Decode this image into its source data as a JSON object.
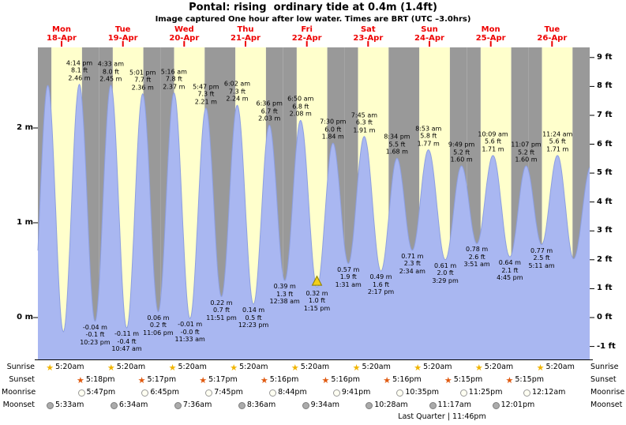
{
  "title": "Pontal: rising  ordinary tide at 0.4m (1.4ft)",
  "subtitle": "Image captured One hour after low water. Times are BRT (UTC –3.0hrs)",
  "days": [
    {
      "name": "Mon",
      "date": "18-Apr"
    },
    {
      "name": "Tue",
      "date": "19-Apr"
    },
    {
      "name": "Wed",
      "date": "20-Apr"
    },
    {
      "name": "Thu",
      "date": "21-Apr"
    },
    {
      "name": "Fri",
      "date": "22-Apr"
    },
    {
      "name": "Sat",
      "date": "23-Apr"
    },
    {
      "name": "Sun",
      "date": "24-Apr"
    },
    {
      "name": "Mon",
      "date": "25-Apr"
    },
    {
      "name": "Tue",
      "date": "26-Apr"
    }
  ],
  "axis": {
    "left": [
      {
        "text": "2 m",
        "m": 2
      },
      {
        "text": "1 m",
        "m": 1
      },
      {
        "text": "0 m",
        "m": 0
      }
    ],
    "right": [
      {
        "text": "9 ft",
        "ft": 9
      },
      {
        "text": "8 ft",
        "ft": 8
      },
      {
        "text": "7 ft",
        "ft": 7
      },
      {
        "text": "6 ft",
        "ft": 6
      },
      {
        "text": "5 ft",
        "ft": 5
      },
      {
        "text": "4 ft",
        "ft": 4
      },
      {
        "text": "3 ft",
        "ft": 3
      },
      {
        "text": "2 ft",
        "ft": 2
      },
      {
        "text": "1 ft",
        "ft": 1
      },
      {
        "text": "0 ft",
        "ft": 0
      },
      {
        "text": "-1 ft",
        "ft": -1
      }
    ]
  },
  "chart_data": {
    "type": "area",
    "title": "Pontal tide heights 18-Apr to 26-Apr",
    "unit_left": "m",
    "unit_right": "ft",
    "ylim_m": [
      -0.44,
      2.85
    ],
    "tide_events": [
      {
        "t": -2.3,
        "h": -0.05,
        "kind": "low"
      },
      {
        "t": 3.9,
        "h": 2.45,
        "kind": "high"
      },
      {
        "t": 9.97,
        "h": -0.15,
        "kind": "low"
      },
      {
        "t": 16.23,
        "h": 2.46,
        "kind": "high",
        "lines": [
          "4:14 pm",
          "8.1 ft",
          "2.46 m"
        ]
      },
      {
        "t": 22.38,
        "h": -0.04,
        "kind": "low",
        "lines": [
          "-0.04 m",
          "-0.1 ft",
          "10:23 pm"
        ]
      },
      {
        "t": 28.55,
        "h": 2.45,
        "kind": "high",
        "lines": [
          "4:33 am",
          "8.0 ft",
          "2.45 m"
        ]
      },
      {
        "t": 34.78,
        "h": -0.11,
        "kind": "low",
        "lines": [
          "-0.11 m",
          "-0.4 ft",
          "10:47 am"
        ]
      },
      {
        "t": 41.02,
        "h": 2.36,
        "kind": "high",
        "lines": [
          "5:01 pm",
          "7.7 ft",
          "2.36 m"
        ]
      },
      {
        "t": 47.1,
        "h": 0.06,
        "kind": "low",
        "lines": [
          "0.06 m",
          "0.2 ft",
          "11:06 pm"
        ]
      },
      {
        "t": 53.27,
        "h": 2.37,
        "kind": "high",
        "lines": [
          "5:16 am",
          "7.8 ft",
          "2.37 m"
        ]
      },
      {
        "t": 59.55,
        "h": -0.01,
        "kind": "low",
        "lines": [
          "-0.01 m",
          "-0.0 ft",
          "11:33 am"
        ]
      },
      {
        "t": 65.78,
        "h": 2.21,
        "kind": "high",
        "lines": [
          "5:47 pm",
          "7.3 ft",
          "2.21 m"
        ]
      },
      {
        "t": 71.85,
        "h": 0.22,
        "kind": "low",
        "lines": [
          "0.22 m",
          "0.7 ft",
          "11:51 pm"
        ]
      },
      {
        "t": 78.03,
        "h": 2.24,
        "kind": "high",
        "lines": [
          "6:02 am",
          "7.3 ft",
          "2.24 m"
        ]
      },
      {
        "t": 84.38,
        "h": 0.14,
        "kind": "low",
        "lines": [
          "0.14 m",
          "0.5 ft",
          "12:23 pm"
        ]
      },
      {
        "t": 90.6,
        "h": 2.03,
        "kind": "high",
        "lines": [
          "6:36 pm",
          "6.7 ft",
          "2.03 m"
        ]
      },
      {
        "t": 96.63,
        "h": 0.39,
        "kind": "low",
        "lines": [
          "0.39 m",
          "1.3 ft",
          "12:38 am"
        ]
      },
      {
        "t": 102.83,
        "h": 2.08,
        "kind": "high",
        "lines": [
          "6:50 am",
          "6.8 ft",
          "2.08 m"
        ]
      },
      {
        "t": 109.25,
        "h": 0.32,
        "kind": "low",
        "lines": [
          "0.32 m",
          "1.0 ft",
          "1:15 pm"
        ]
      },
      {
        "t": 115.5,
        "h": 1.84,
        "kind": "high",
        "lines": [
          "7:30 pm",
          "6.0 ft",
          "1.84 m"
        ]
      },
      {
        "t": 121.52,
        "h": 0.57,
        "kind": "low",
        "lines": [
          "0.57 m",
          "1.9 ft",
          "1:31 am"
        ]
      },
      {
        "t": 127.75,
        "h": 1.91,
        "kind": "high",
        "lines": [
          "7:45 am",
          "6.3 ft",
          "1.91 m"
        ]
      },
      {
        "t": 134.28,
        "h": 0.49,
        "kind": "low",
        "lines": [
          "0.49 m",
          "1.6 ft",
          "2:17 pm"
        ]
      },
      {
        "t": 140.57,
        "h": 1.68,
        "kind": "high",
        "lines": [
          "8:34 pm",
          "5.5 ft",
          "1.68 m"
        ]
      },
      {
        "t": 146.57,
        "h": 0.71,
        "kind": "low",
        "lines": [
          "0.71 m",
          "2.3 ft",
          "2:34 am"
        ]
      },
      {
        "t": 152.88,
        "h": 1.77,
        "kind": "high",
        "lines": [
          "8:53 am",
          "5.8 ft",
          "1.77 m"
        ]
      },
      {
        "t": 159.48,
        "h": 0.61,
        "kind": "low",
        "lines": [
          "0.61 m",
          "2.0 ft",
          "3:29 pm"
        ]
      },
      {
        "t": 165.82,
        "h": 1.6,
        "kind": "high",
        "lines": [
          "9:49 pm",
          "5.2 ft",
          "1.60 m"
        ]
      },
      {
        "t": 171.85,
        "h": 0.78,
        "kind": "low",
        "lines": [
          "0.78 m",
          "2.6 ft",
          "3:51 am"
        ]
      },
      {
        "t": 178.15,
        "h": 1.71,
        "kind": "high",
        "lines": [
          "10:09 am",
          "5.6 ft",
          "1.71 m"
        ]
      },
      {
        "t": 184.75,
        "h": 0.64,
        "kind": "low",
        "lines": [
          "0.64 m",
          "2.1 ft",
          "4:45 pm"
        ]
      },
      {
        "t": 191.12,
        "h": 1.6,
        "kind": "high",
        "lines": [
          "11:07 pm",
          "5.2 ft",
          "1.60 m"
        ]
      },
      {
        "t": 197.18,
        "h": 0.77,
        "kind": "low",
        "lines": [
          "0.77 m",
          "2.5 ft",
          "5:11 am"
        ]
      },
      {
        "t": 203.4,
        "h": 1.71,
        "kind": "high",
        "lines": [
          "11:24 am",
          "5.6 ft",
          "1.71 m"
        ]
      },
      {
        "t": 209.7,
        "h": 0.62,
        "kind": "low"
      },
      {
        "t": 216.5,
        "h": 1.6,
        "kind": "high"
      }
    ],
    "current_marker": {
      "t": 109.25,
      "h": 0.32
    }
  },
  "astro": {
    "rows": [
      {
        "label": "Sunrise",
        "icon": "sunrise",
        "entries": [
          {
            "t": 5.33,
            "time": "5:20am"
          },
          {
            "t": 29.33,
            "time": "5:20am"
          },
          {
            "t": 53.33,
            "time": "5:20am"
          },
          {
            "t": 77.33,
            "time": "5:20am"
          },
          {
            "t": 101.33,
            "time": "5:20am"
          },
          {
            "t": 125.33,
            "time": "5:20am"
          },
          {
            "t": 149.33,
            "time": "5:20am"
          },
          {
            "t": 173.33,
            "time": "5:20am"
          },
          {
            "t": 197.33,
            "time": "5:20am"
          }
        ]
      },
      {
        "label": "Sunset",
        "icon": "sunset",
        "entries": [
          {
            "t": 17.3,
            "time": "5:18pm"
          },
          {
            "t": 41.28,
            "time": "5:17pm"
          },
          {
            "t": 65.28,
            "time": "5:17pm"
          },
          {
            "t": 89.27,
            "time": "5:16pm"
          },
          {
            "t": 113.27,
            "time": "5:16pm"
          },
          {
            "t": 137.27,
            "time": "5:16pm"
          },
          {
            "t": 161.25,
            "time": "5:15pm"
          },
          {
            "t": 185.25,
            "time": "5:15pm"
          }
        ]
      },
      {
        "label": "Moonrise",
        "icon": "moonrise",
        "entries": [
          {
            "t": 17.78,
            "time": "5:47pm"
          },
          {
            "t": 42.75,
            "time": "6:45pm"
          },
          {
            "t": 67.75,
            "time": "7:45pm"
          },
          {
            "t": 92.73,
            "time": "8:44pm"
          },
          {
            "t": 117.68,
            "time": "9:41pm"
          },
          {
            "t": 142.58,
            "time": "10:35pm"
          },
          {
            "t": 167.42,
            "time": "11:25pm"
          },
          {
            "t": 192.2,
            "time": "12:12am"
          }
        ]
      },
      {
        "label": "Moonset",
        "icon": "moonset",
        "entries": [
          {
            "t": 5.55,
            "time": "5:33am"
          },
          {
            "t": 30.57,
            "time": "6:34am"
          },
          {
            "t": 55.6,
            "time": "7:36am"
          },
          {
            "t": 80.6,
            "time": "8:36am"
          },
          {
            "t": 105.57,
            "time": "9:34am"
          },
          {
            "t": 130.47,
            "time": "10:28am"
          },
          {
            "t": 155.28,
            "time": "11:17am"
          },
          {
            "t": 180.02,
            "time": "12:01pm"
          }
        ]
      }
    ],
    "footnote": "Last Quarter | 11:46pm"
  },
  "colors": {
    "day_band": "#ffffcc",
    "night_band": "#999999",
    "tide_fill": "#a9b7f1",
    "tide_stroke": "#8d9fe0",
    "date_red": "#ee0000",
    "marker_yellow": "#f2cf1b",
    "marker_edge": "#8a7d00",
    "sunrise_star": "#f0b400",
    "sunset_star": "#e05a10",
    "moon_light_fill": "#fffff2",
    "moon_light_edge": "#999999",
    "moon_dark_fill": "#ababab",
    "moon_dark_edge": "#7d7d7d"
  }
}
